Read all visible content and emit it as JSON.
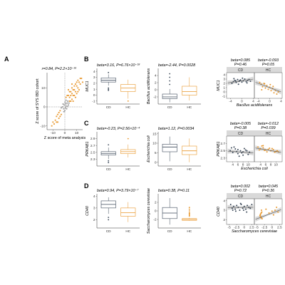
{
  "colors": {
    "cd": "#3d4a5a",
    "hc": "#e8962a",
    "grey": "#9a9a9a",
    "strip": "#d9d9d9"
  },
  "panels": {
    "A": {
      "label": "A"
    },
    "B": {
      "label": "B"
    },
    "C": {
      "label": "C"
    },
    "D": {
      "label": "D"
    }
  },
  "chart_data": [
    {
      "id": "A",
      "type": "scatter",
      "stat_text": "r=0.84, P=2.2×10⁻¹⁶",
      "xlabel": "Z score of meta analysis",
      "ylabel": "Z score of SYS IBD cohort",
      "xlim": [
        -15,
        15
      ],
      "ylim": [
        -12,
        18
      ],
      "xticks": [
        -10,
        0,
        10
      ],
      "yticks": [
        -10,
        0,
        10
      ],
      "series": [
        {
          "points": [
            [
              1,
              0.5
            ],
            [
              -0.5,
              1
            ],
            [
              0.5,
              -0.5
            ],
            [
              -1,
              -1
            ],
            [
              2,
              2
            ],
            [
              -2,
              0
            ],
            [
              0,
              -2
            ],
            [
              1.5,
              -1
            ],
            [
              3,
              1
            ],
            [
              -1.5,
              1.5
            ],
            [
              0.2,
              2.5
            ],
            [
              2.5,
              3
            ],
            [
              -3,
              -0.5
            ],
            [
              1,
              3.5
            ],
            [
              3.5,
              2
            ],
            [
              -0.8,
              -2.5
            ],
            [
              0.8,
              1.6
            ],
            [
              2.2,
              0.2
            ]
          ]
        },
        {
          "points": [
            [
              4,
              5
            ],
            [
              5,
              6
            ],
            [
              6,
              7
            ],
            [
              7,
              6
            ],
            [
              8,
              9
            ],
            [
              9,
              8
            ],
            [
              10,
              11
            ],
            [
              11,
              10
            ],
            [
              12,
              13
            ],
            [
              13,
              12
            ],
            [
              5,
              8
            ],
            [
              7,
              9
            ],
            [
              9,
              12
            ],
            [
              6,
              4
            ],
            [
              8,
              6
            ],
            [
              10,
              7
            ],
            [
              11,
              14
            ],
            [
              14,
              15
            ],
            [
              3,
              6
            ],
            [
              4,
              8
            ],
            [
              6,
              10
            ],
            [
              8,
              11
            ],
            [
              10,
              13
            ],
            [
              12,
              9
            ],
            [
              7,
              3
            ],
            [
              9,
              5
            ],
            [
              5,
              3
            ],
            [
              13,
              15
            ],
            [
              -4,
              -5
            ],
            [
              -5,
              -6
            ],
            [
              -6,
              -4
            ],
            [
              -7,
              -8
            ],
            [
              -8,
              -7
            ],
            [
              -9,
              -9
            ],
            [
              -5,
              -3
            ],
            [
              -6,
              -8
            ],
            [
              -3,
              -4
            ],
            [
              -10,
              -8
            ],
            [
              -4,
              -2
            ],
            [
              -7,
              -5
            ],
            [
              -11,
              -10
            ],
            [
              2,
              6
            ],
            [
              3,
              9
            ],
            [
              4,
              3
            ],
            [
              1,
              5
            ],
            [
              11,
              8
            ],
            [
              15,
              13
            ],
            [
              6,
              12
            ]
          ]
        }
      ]
    },
    {
      "id": "B1",
      "type": "box",
      "stat_text": "beta=3.16, P=6.76×10⁻¹⁸",
      "ylabel": "MUC1",
      "categories": [
        "CD",
        "HC"
      ],
      "ylim": [
        -1.5,
        4.5
      ],
      "yticks": [
        -1,
        0,
        1,
        2,
        3,
        4
      ],
      "boxes": [
        {
          "q1": 2.2,
          "med": 2.5,
          "q3": 2.9,
          "lo": 1.6,
          "hi": 3.5,
          "out": [
            1.2,
            1.0,
            0.8,
            3.8
          ]
        },
        {
          "q1": 0.6,
          "med": 1.2,
          "q3": 1.8,
          "lo": -0.6,
          "hi": 2.6,
          "out": [
            -1.0
          ]
        }
      ]
    },
    {
      "id": "B2",
      "type": "box",
      "stat_text": "beta=-2.44, P=0.0028",
      "ylabel": "Bacillus acidifolerans",
      "categories": [
        "CD",
        "HC"
      ],
      "ylim": [
        -4,
        6
      ],
      "yticks": [
        -2,
        0,
        2,
        4
      ],
      "boxes": [
        {
          "q1": -2.5,
          "med": -2.0,
          "q3": -1.2,
          "lo": -3.5,
          "hi": 0.2,
          "out": [
            1.5,
            2.5,
            3.5,
            4.5
          ]
        },
        {
          "q1": -1.5,
          "med": -0.5,
          "q3": 1.0,
          "lo": -3.0,
          "hi": 3.5,
          "out": []
        }
      ]
    },
    {
      "id": "B3",
      "type": "scatter",
      "ylabel": "MUC1",
      "xlabel": "Bacillus acidifolerans",
      "xlim": [
        -5,
        4
      ],
      "ylim": [
        -1.5,
        4.5
      ],
      "yticks": [
        -1,
        0,
        1,
        2,
        3,
        4
      ],
      "xticks": [
        -4,
        0,
        4,
        8
      ],
      "facets": [
        {
          "name": "CD",
          "stat_text": "beta=0.085\nP=0.46",
          "slope": 0.1,
          "intercept": 2.6,
          "points": [
            [
              -3,
              2.4
            ],
            [
              -2.5,
              2.7
            ],
            [
              -2,
              2.2
            ],
            [
              -1.5,
              2.9
            ],
            [
              -1,
              2.5
            ],
            [
              -0.5,
              2.8
            ],
            [
              0,
              2.3
            ],
            [
              0.5,
              2.6
            ],
            [
              1,
              3.0
            ],
            [
              1.5,
              2.4
            ],
            [
              2,
              2.7
            ],
            [
              -3.5,
              2.0
            ],
            [
              -2.8,
              3.1
            ],
            [
              -1.2,
              1.8
            ],
            [
              0.2,
              3.2
            ],
            [
              1.8,
              2.1
            ],
            [
              2.5,
              2.9
            ],
            [
              -0.8,
              2.6
            ],
            [
              3,
              2.5
            ],
            [
              -2.2,
              2.6
            ]
          ]
        },
        {
          "name": "HC",
          "stat_text": "beta=-0.093\nP=0.05",
          "slope": -0.25,
          "intercept": 1.0,
          "points": [
            [
              -3,
              1.8
            ],
            [
              -2.5,
              1.2
            ],
            [
              -2,
              2.0
            ],
            [
              -1.5,
              0.9
            ],
            [
              -1,
              1.5
            ],
            [
              -0.5,
              0.6
            ],
            [
              0,
              1.1
            ],
            [
              0.5,
              0.3
            ],
            [
              1,
              0.8
            ],
            [
              1.5,
              -0.2
            ],
            [
              2,
              0.4
            ],
            [
              2.5,
              -0.5
            ],
            [
              -3.5,
              2.2
            ],
            [
              -2.8,
              0.5
            ],
            [
              0.2,
              1.7
            ],
            [
              3,
              0.0
            ],
            [
              -1.8,
              1.9
            ],
            [
              1.2,
              1.3
            ]
          ]
        }
      ]
    },
    {
      "id": "C1",
      "type": "box",
      "stat_text": "beta=-0.23, P=2.56×10⁻⁴",
      "ylabel": "PRKAB1",
      "categories": [
        "CD",
        "HC"
      ],
      "ylim": [
        2.1,
        3.1
      ],
      "yticks": [
        2.3,
        2.5,
        2.7,
        2.9
      ],
      "boxes": [
        {
          "q1": 2.42,
          "med": 2.47,
          "q3": 2.52,
          "lo": 2.3,
          "hi": 2.64,
          "out": [
            2.2,
            2.25,
            2.72
          ]
        },
        {
          "q1": 2.46,
          "med": 2.52,
          "q3": 2.58,
          "lo": 2.35,
          "hi": 2.73,
          "out": [
            2.9
          ]
        }
      ]
    },
    {
      "id": "C2",
      "type": "box",
      "stat_text": "beta=1.12, P=0.0034",
      "ylabel": "Escherichia coli",
      "categories": [
        "CD",
        "HC"
      ],
      "ylim": [
        -2,
        16
      ],
      "yticks": [
        0,
        5,
        10,
        15
      ],
      "boxes": [
        {
          "q1": 5.5,
          "med": 8.0,
          "q3": 9.5,
          "lo": 0.5,
          "hi": 13.5,
          "out": []
        },
        {
          "q1": 4.0,
          "med": 6.0,
          "q3": 8.5,
          "lo": 0.0,
          "hi": 12.5,
          "out": []
        }
      ]
    },
    {
      "id": "C3",
      "type": "scatter",
      "ylabel": "PRKAB1",
      "xlabel": "Escherichia coli",
      "xlim": [
        2,
        12
      ],
      "ylim": [
        2.2,
        2.9
      ],
      "yticks": [
        2.3,
        2.5,
        2.7
      ],
      "xticks": [
        4,
        6,
        8,
        10
      ],
      "facets": [
        {
          "name": "CD",
          "stat_text": "beta=-0.005\nP=0.38",
          "slope": -0.005,
          "intercept": 2.5,
          "points": [
            [
              3,
              2.5
            ],
            [
              4,
              2.45
            ],
            [
              5,
              2.55
            ],
            [
              6,
              2.42
            ],
            [
              7,
              2.5
            ],
            [
              8,
              2.47
            ],
            [
              9,
              2.52
            ],
            [
              10,
              2.4
            ],
            [
              4.5,
              2.6
            ],
            [
              6.5,
              2.35
            ],
            [
              8.5,
              2.56
            ],
            [
              5.5,
              2.48
            ],
            [
              7.5,
              2.44
            ],
            [
              9.5,
              2.5
            ],
            [
              3.5,
              2.58
            ],
            [
              10.5,
              2.46
            ],
            [
              6,
              2.53
            ],
            [
              8,
              2.38
            ]
          ]
        },
        {
          "name": "HC",
          "stat_text": "beta=-0.012\nP=0.039",
          "slope": -0.012,
          "intercept": 2.6,
          "points": [
            [
              3,
              2.6
            ],
            [
              4,
              2.55
            ],
            [
              5,
              2.58
            ],
            [
              6,
              2.52
            ],
            [
              7,
              2.54
            ],
            [
              8,
              2.5
            ],
            [
              9,
              2.53
            ],
            [
              10,
              2.48
            ],
            [
              4.5,
              2.63
            ],
            [
              6.5,
              2.47
            ],
            [
              8.5,
              2.56
            ],
            [
              5.5,
              2.51
            ],
            [
              7.5,
              2.57
            ],
            [
              9.5,
              2.46
            ],
            [
              3.5,
              2.52
            ],
            [
              10.5,
              2.5
            ],
            [
              11,
              2.47
            ],
            [
              5,
              2.64
            ]
          ]
        }
      ]
    },
    {
      "id": "D1",
      "type": "box",
      "stat_text": "beta=0.94, P=3.79×10⁻⁷",
      "ylabel": "CD40",
      "categories": [
        "CD",
        "HC"
      ],
      "ylim": [
        1.3,
        4.2
      ],
      "yticks": [
        2,
        3,
        4
      ],
      "boxes": [
        {
          "q1": 3.0,
          "med": 3.3,
          "q3": 3.6,
          "lo": 2.5,
          "hi": 3.9,
          "out": [
            2.2,
            2.0
          ]
        },
        {
          "q1": 2.3,
          "med": 2.6,
          "q3": 3.0,
          "lo": 1.8,
          "hi": 3.5,
          "out": []
        }
      ]
    },
    {
      "id": "D2",
      "type": "box",
      "stat_text": "beta=0.38, P=0.11",
      "ylabel": "Saccharomyces cerevisiae",
      "categories": [
        "CD",
        "HC"
      ],
      "ylim": [
        -4,
        4
      ],
      "yticks": [
        -2,
        0,
        2
      ],
      "boxes": [
        {
          "q1": -1.8,
          "med": -0.5,
          "q3": 0.8,
          "lo": -3.2,
          "hi": 3.0,
          "out": []
        },
        {
          "q1": -2.2,
          "med": -2.0,
          "q3": -1.8,
          "lo": -2.3,
          "hi": -1.6,
          "out": [
            -1.2,
            -0.8,
            -0.4,
            0.0,
            0.4,
            0.8,
            -1.0,
            -0.6
          ]
        }
      ]
    },
    {
      "id": "D3",
      "type": "scatter",
      "ylabel": "CD40",
      "xlabel": "Saccharomyces cerevisiae",
      "xlim": [
        -5.5,
        3
      ],
      "ylim": [
        1.5,
        4.2
      ],
      "yticks": [
        2,
        3,
        4
      ],
      "xticks": [
        -5.0,
        -2.5,
        0,
        2.5
      ],
      "facets": [
        {
          "name": "CD",
          "stat_text": "beta=0.002\nP=0.72",
          "slope": 0.002,
          "intercept": 3.3,
          "points": [
            [
              -4,
              3.2
            ],
            [
              -3.5,
              3.4
            ],
            [
              -3,
              3.1
            ],
            [
              -2.5,
              3.5
            ],
            [
              -2,
              3.3
            ],
            [
              -1.5,
              3.0
            ],
            [
              -1,
              3.6
            ],
            [
              -0.5,
              3.2
            ],
            [
              0,
              3.4
            ],
            [
              0.5,
              3.1
            ],
            [
              1,
              3.5
            ],
            [
              1.5,
              3.3
            ],
            [
              -4.5,
              3.6
            ],
            [
              -2.8,
              2.9
            ],
            [
              -1.2,
              3.7
            ],
            [
              0.8,
              2.8
            ],
            [
              2,
              3.2
            ],
            [
              -3.8,
              3.0
            ],
            [
              2.5,
              3.6
            ],
            [
              -0.2,
              3.0
            ]
          ]
        },
        {
          "name": "HC",
          "stat_text": "beta=0.045\nP=0.36",
          "slope": 0.12,
          "intercept": 2.7,
          "points": [
            [
              -4,
              2.4
            ],
            [
              -3.8,
              2.6
            ],
            [
              -3.6,
              2.2
            ],
            [
              -3.4,
              2.8
            ],
            [
              -3.9,
              2.5
            ],
            [
              -3.5,
              3.0
            ],
            [
              -3.7,
              2.3
            ],
            [
              -1,
              2.7
            ],
            [
              0,
              2.9
            ],
            [
              1,
              3.0
            ],
            [
              2,
              2.8
            ],
            [
              -3.3,
              2.1
            ],
            [
              -2,
              3.1
            ],
            [
              0.5,
              2.5
            ],
            [
              1.5,
              3.3
            ],
            [
              -3.6,
              2.7
            ]
          ]
        }
      ]
    }
  ]
}
